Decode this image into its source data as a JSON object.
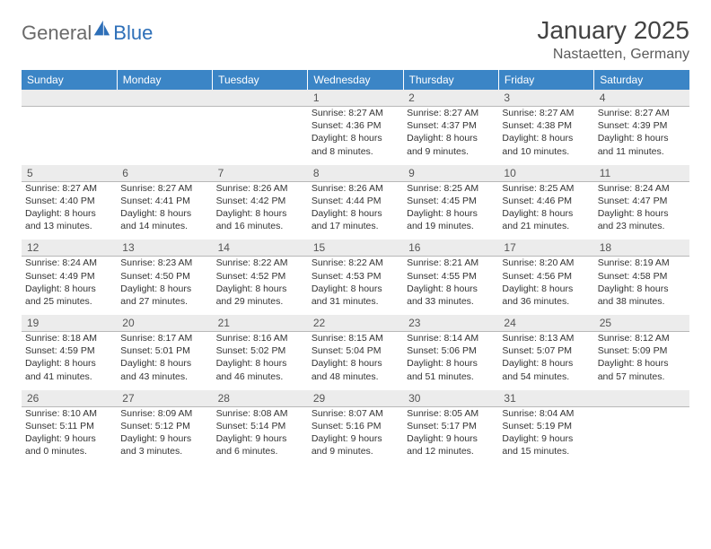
{
  "logo": {
    "text_general": "General",
    "text_blue": "Blue",
    "icon_fill": "#2d6fb8"
  },
  "title": {
    "month_year": "January 2025",
    "location": "Nastaetten, Germany"
  },
  "colors": {
    "header_bg": "#3b85c6",
    "header_text": "#ffffff",
    "daynum_bg": "#ececec",
    "daynum_text": "#555555",
    "body_text": "#333333",
    "rule": "#b8b8b8"
  },
  "day_headers": [
    "Sunday",
    "Monday",
    "Tuesday",
    "Wednesday",
    "Thursday",
    "Friday",
    "Saturday"
  ],
  "weeks": [
    [
      null,
      null,
      null,
      {
        "n": "1",
        "sr": "Sunrise: 8:27 AM",
        "ss": "Sunset: 4:36 PM",
        "d1": "Daylight: 8 hours",
        "d2": "and 8 minutes."
      },
      {
        "n": "2",
        "sr": "Sunrise: 8:27 AM",
        "ss": "Sunset: 4:37 PM",
        "d1": "Daylight: 8 hours",
        "d2": "and 9 minutes."
      },
      {
        "n": "3",
        "sr": "Sunrise: 8:27 AM",
        "ss": "Sunset: 4:38 PM",
        "d1": "Daylight: 8 hours",
        "d2": "and 10 minutes."
      },
      {
        "n": "4",
        "sr": "Sunrise: 8:27 AM",
        "ss": "Sunset: 4:39 PM",
        "d1": "Daylight: 8 hours",
        "d2": "and 11 minutes."
      }
    ],
    [
      {
        "n": "5",
        "sr": "Sunrise: 8:27 AM",
        "ss": "Sunset: 4:40 PM",
        "d1": "Daylight: 8 hours",
        "d2": "and 13 minutes."
      },
      {
        "n": "6",
        "sr": "Sunrise: 8:27 AM",
        "ss": "Sunset: 4:41 PM",
        "d1": "Daylight: 8 hours",
        "d2": "and 14 minutes."
      },
      {
        "n": "7",
        "sr": "Sunrise: 8:26 AM",
        "ss": "Sunset: 4:42 PM",
        "d1": "Daylight: 8 hours",
        "d2": "and 16 minutes."
      },
      {
        "n": "8",
        "sr": "Sunrise: 8:26 AM",
        "ss": "Sunset: 4:44 PM",
        "d1": "Daylight: 8 hours",
        "d2": "and 17 minutes."
      },
      {
        "n": "9",
        "sr": "Sunrise: 8:25 AM",
        "ss": "Sunset: 4:45 PM",
        "d1": "Daylight: 8 hours",
        "d2": "and 19 minutes."
      },
      {
        "n": "10",
        "sr": "Sunrise: 8:25 AM",
        "ss": "Sunset: 4:46 PM",
        "d1": "Daylight: 8 hours",
        "d2": "and 21 minutes."
      },
      {
        "n": "11",
        "sr": "Sunrise: 8:24 AM",
        "ss": "Sunset: 4:47 PM",
        "d1": "Daylight: 8 hours",
        "d2": "and 23 minutes."
      }
    ],
    [
      {
        "n": "12",
        "sr": "Sunrise: 8:24 AM",
        "ss": "Sunset: 4:49 PM",
        "d1": "Daylight: 8 hours",
        "d2": "and 25 minutes."
      },
      {
        "n": "13",
        "sr": "Sunrise: 8:23 AM",
        "ss": "Sunset: 4:50 PM",
        "d1": "Daylight: 8 hours",
        "d2": "and 27 minutes."
      },
      {
        "n": "14",
        "sr": "Sunrise: 8:22 AM",
        "ss": "Sunset: 4:52 PM",
        "d1": "Daylight: 8 hours",
        "d2": "and 29 minutes."
      },
      {
        "n": "15",
        "sr": "Sunrise: 8:22 AM",
        "ss": "Sunset: 4:53 PM",
        "d1": "Daylight: 8 hours",
        "d2": "and 31 minutes."
      },
      {
        "n": "16",
        "sr": "Sunrise: 8:21 AM",
        "ss": "Sunset: 4:55 PM",
        "d1": "Daylight: 8 hours",
        "d2": "and 33 minutes."
      },
      {
        "n": "17",
        "sr": "Sunrise: 8:20 AM",
        "ss": "Sunset: 4:56 PM",
        "d1": "Daylight: 8 hours",
        "d2": "and 36 minutes."
      },
      {
        "n": "18",
        "sr": "Sunrise: 8:19 AM",
        "ss": "Sunset: 4:58 PM",
        "d1": "Daylight: 8 hours",
        "d2": "and 38 minutes."
      }
    ],
    [
      {
        "n": "19",
        "sr": "Sunrise: 8:18 AM",
        "ss": "Sunset: 4:59 PM",
        "d1": "Daylight: 8 hours",
        "d2": "and 41 minutes."
      },
      {
        "n": "20",
        "sr": "Sunrise: 8:17 AM",
        "ss": "Sunset: 5:01 PM",
        "d1": "Daylight: 8 hours",
        "d2": "and 43 minutes."
      },
      {
        "n": "21",
        "sr": "Sunrise: 8:16 AM",
        "ss": "Sunset: 5:02 PM",
        "d1": "Daylight: 8 hours",
        "d2": "and 46 minutes."
      },
      {
        "n": "22",
        "sr": "Sunrise: 8:15 AM",
        "ss": "Sunset: 5:04 PM",
        "d1": "Daylight: 8 hours",
        "d2": "and 48 minutes."
      },
      {
        "n": "23",
        "sr": "Sunrise: 8:14 AM",
        "ss": "Sunset: 5:06 PM",
        "d1": "Daylight: 8 hours",
        "d2": "and 51 minutes."
      },
      {
        "n": "24",
        "sr": "Sunrise: 8:13 AM",
        "ss": "Sunset: 5:07 PM",
        "d1": "Daylight: 8 hours",
        "d2": "and 54 minutes."
      },
      {
        "n": "25",
        "sr": "Sunrise: 8:12 AM",
        "ss": "Sunset: 5:09 PM",
        "d1": "Daylight: 8 hours",
        "d2": "and 57 minutes."
      }
    ],
    [
      {
        "n": "26",
        "sr": "Sunrise: 8:10 AM",
        "ss": "Sunset: 5:11 PM",
        "d1": "Daylight: 9 hours",
        "d2": "and 0 minutes."
      },
      {
        "n": "27",
        "sr": "Sunrise: 8:09 AM",
        "ss": "Sunset: 5:12 PM",
        "d1": "Daylight: 9 hours",
        "d2": "and 3 minutes."
      },
      {
        "n": "28",
        "sr": "Sunrise: 8:08 AM",
        "ss": "Sunset: 5:14 PM",
        "d1": "Daylight: 9 hours",
        "d2": "and 6 minutes."
      },
      {
        "n": "29",
        "sr": "Sunrise: 8:07 AM",
        "ss": "Sunset: 5:16 PM",
        "d1": "Daylight: 9 hours",
        "d2": "and 9 minutes."
      },
      {
        "n": "30",
        "sr": "Sunrise: 8:05 AM",
        "ss": "Sunset: 5:17 PM",
        "d1": "Daylight: 9 hours",
        "d2": "and 12 minutes."
      },
      {
        "n": "31",
        "sr": "Sunrise: 8:04 AM",
        "ss": "Sunset: 5:19 PM",
        "d1": "Daylight: 9 hours",
        "d2": "and 15 minutes."
      },
      null
    ]
  ]
}
